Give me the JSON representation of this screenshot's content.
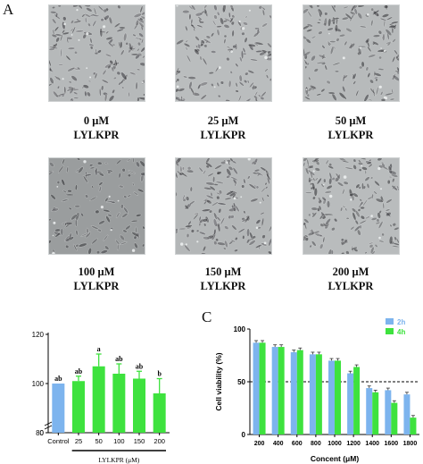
{
  "panel_letters": {
    "a": "A",
    "c": "C"
  },
  "micrographs": [
    {
      "conc": "0 μM",
      "peptide": "LYLKPR"
    },
    {
      "conc": "25 μM",
      "peptide": "LYLKPR"
    },
    {
      "conc": "50 μM",
      "peptide": "LYLKPR"
    },
    {
      "conc": "100 μM",
      "peptide": "LYLKPR"
    },
    {
      "conc": "150 μM",
      "peptide": "LYLKPR"
    },
    {
      "conc": "200 μM",
      "peptide": "LYLKPR"
    }
  ],
  "chart_data": [
    {
      "type": "bar",
      "categories": [
        "Control",
        "25",
        "50",
        "100",
        "150",
        "200"
      ],
      "values": [
        100,
        101,
        107,
        104,
        102,
        96
      ],
      "errors": [
        0,
        2,
        5,
        4,
        3,
        6
      ],
      "letters": [
        "ab",
        "ab",
        "a",
        "ab",
        "ab",
        "b"
      ],
      "group_label": "LYLKPR (μM)",
      "ylim": [
        0,
        120
      ],
      "yticks": [
        0,
        20,
        40,
        60,
        80,
        100,
        120
      ],
      "ydisplay_min": 80,
      "colors": {
        "control": "#7db4ee",
        "treated": "#3ee23e"
      }
    },
    {
      "type": "bar",
      "categories": [
        "200",
        "400",
        "600",
        "800",
        "1000",
        "1200",
        "1400",
        "1600",
        "1800"
      ],
      "series": [
        {
          "name": "2h",
          "values": [
            87,
            83,
            78,
            76,
            70,
            58,
            44,
            42,
            38
          ],
          "errors": [
            2,
            2,
            2,
            2,
            2,
            2,
            2,
            2,
            2
          ],
          "color": "#7db4ee"
        },
        {
          "name": "4h",
          "values": [
            87,
            83,
            80,
            76,
            70,
            64,
            40,
            30,
            16
          ],
          "errors": [
            2,
            2,
            2,
            2,
            2,
            2,
            2,
            2,
            2
          ],
          "color": "#3ee23e"
        }
      ],
      "ylabel": "Cell viability (%)",
      "xlabel": "Concent (μM)",
      "ylim": [
        0,
        100
      ],
      "yticks": [
        0,
        50,
        100
      ],
      "yticks_shown": [
        0,
        50
      ],
      "ytick_labels": [
        "0",
        "50",
        "100"
      ],
      "reference_line": 50,
      "legend_position": "top-right"
    }
  ]
}
